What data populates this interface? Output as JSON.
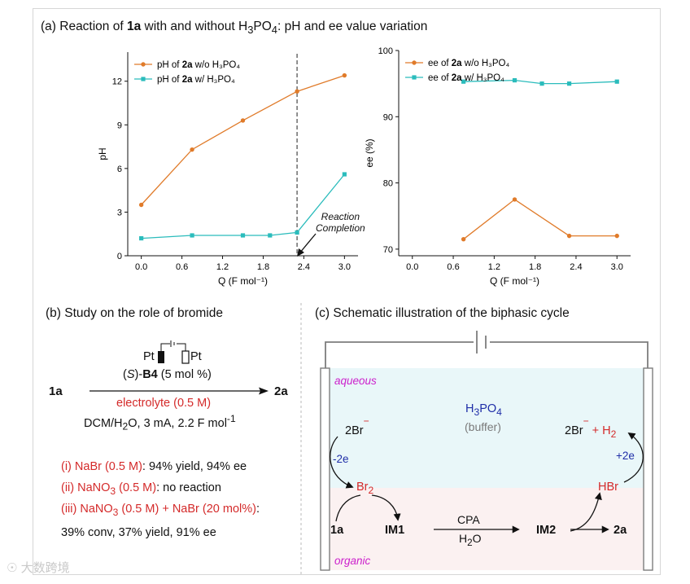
{
  "panel_a": {
    "title_pre": "(a) Reaction of ",
    "title_bold": "1a",
    "title_mid": " with and without H",
    "title_sub1": "3",
    "title_mid2": "PO",
    "title_sub2": "4",
    "title_post": ": pH and ee value variation",
    "annotation_line1": "Reaction",
    "annotation_line2": "Completion"
  },
  "chart_data": [
    {
      "type": "line",
      "title": "",
      "xlabel": "Q (F mol⁻¹)",
      "ylabel": "pH",
      "xlim": [
        -0.2,
        3.2
      ],
      "ylim": [
        0,
        14
      ],
      "xticks": [
        0.0,
        0.6,
        1.2,
        1.8,
        2.4,
        3.0
      ],
      "xtick_labels": [
        "0.0",
        "0.6",
        "1.2",
        "1.8",
        "2.4",
        "3.0"
      ],
      "yticks": [
        0,
        3,
        6,
        9,
        12
      ],
      "ytick_labels": [
        "0",
        "3",
        "6",
        "9",
        "12"
      ],
      "legend_position": "top-left",
      "vline_x": 2.3,
      "series": [
        {
          "name": "pH of 2a w/o H3PO4",
          "legend_pre": "pH of ",
          "legend_bold": "2a",
          "legend_post": " w/o H₃PO₄",
          "color": "#e07b2a",
          "marker": "circle",
          "x": [
            0.0,
            0.75,
            1.5,
            2.3,
            3.0
          ],
          "y": [
            3.5,
            7.3,
            9.3,
            11.3,
            12.4
          ]
        },
        {
          "name": "pH of 2a w/ H3PO4",
          "legend_pre": "pH of ",
          "legend_bold": "2a",
          "legend_post": " w/ H₃PO₄",
          "color": "#2bbcbc",
          "marker": "square",
          "x": [
            0.0,
            0.75,
            1.5,
            1.9,
            2.3,
            3.0
          ],
          "y": [
            1.2,
            1.4,
            1.4,
            1.4,
            1.6,
            5.6
          ]
        }
      ]
    },
    {
      "type": "line",
      "title": "",
      "xlabel": "Q (F mol⁻¹)",
      "ylabel": "ee (%)",
      "xlim": [
        -0.2,
        3.2
      ],
      "ylim": [
        69,
        100
      ],
      "xticks": [
        0.0,
        0.6,
        1.2,
        1.8,
        2.4,
        3.0
      ],
      "xtick_labels": [
        "0.0",
        "0.6",
        "1.2",
        "1.8",
        "2.4",
        "3.0"
      ],
      "yticks": [
        70,
        80,
        90,
        100
      ],
      "ytick_labels": [
        "70",
        "80",
        "90",
        "100"
      ],
      "legend_position": "top-left",
      "series": [
        {
          "name": "ee of 2a w/o H3PO4",
          "legend_pre": "ee of ",
          "legend_bold": "2a",
          "legend_post": " w/o H₃PO₄",
          "color": "#e07b2a",
          "marker": "circle",
          "x": [
            0.75,
            1.5,
            2.3,
            3.0
          ],
          "y": [
            71.5,
            77.5,
            72.0,
            72.0
          ]
        },
        {
          "name": "ee of 2a w/ H3PO4",
          "legend_pre": "ee of ",
          "legend_bold": "2a",
          "legend_post": " w/ H₃PO₄",
          "color": "#2bbcbc",
          "marker": "square",
          "x": [
            0.75,
            1.5,
            1.9,
            2.3,
            3.0
          ],
          "y": [
            95.3,
            95.5,
            95.0,
            95.0,
            95.3
          ]
        }
      ]
    }
  ],
  "panel_b": {
    "title": "(b) Study on the role of bromide",
    "reactant": "1a",
    "product": "2a",
    "electrode_left": "Pt",
    "electrode_right": "Pt",
    "catalyst_pre": "(",
    "catalyst_italic": "S",
    "catalyst_mid": ")-",
    "catalyst_bold": "B4",
    "catalyst_post": " (5 mol %)",
    "electrolyte": "electrolyte (0.5 M)",
    "conditions_pre": "DCM/H",
    "conditions_sub": "2",
    "conditions_post": "O, 3 mA, 2.2 F mol",
    "conditions_sup": "-1",
    "result1_red": "(i) NaBr (0.5 M)",
    "result1_black": ": 94% yield, 94% ee",
    "result2_red_pre": "(ii) NaNO",
    "result2_sub": "3",
    "result2_red_post": " (0.5 M)",
    "result2_black": ": no reaction",
    "result3_red_pre": "(iii) NaNO",
    "result3_sub": "3",
    "result3_red_post": " (0.5 M) + NaBr (20 mol%)",
    "result3_black": ":",
    "result4": "39% conv, 37% yield, 91% ee"
  },
  "panel_c": {
    "title": "(c) Schematic illustration of the biphasic cycle",
    "aqueous_label": "aqueous",
    "organic_label": "organic",
    "acid_pre": "H",
    "acid_sub1": "3",
    "acid_mid": "PO",
    "acid_sub2": "4",
    "buffer": "(buffer)",
    "br_left": "2Br",
    "br_charge": "−",
    "br_right": "2Br",
    "h2_pre": " + H",
    "h2_sub": "2",
    "minus2e": "-2e",
    "plus2e": "+2e",
    "br2_pre": "Br",
    "br2_sub": "2",
    "hbr": "HBr",
    "sub_1a": "1a",
    "im1": "IM1",
    "cpa": "CPA",
    "h2o_pre": "H",
    "h2o_sub": "2",
    "h2o_post": "O",
    "im2": "IM2",
    "prod_2a": "2a"
  },
  "watermark": "☉ 大数跨境",
  "colors": {
    "orange": "#e07b2a",
    "teal": "#2bbcbc",
    "red": "#d42a2a",
    "blue": "#1f2ea8",
    "magenta": "#cc22cc",
    "aqueous_bg": "#e9f7f9",
    "organic_bg": "#fbf1f1"
  }
}
